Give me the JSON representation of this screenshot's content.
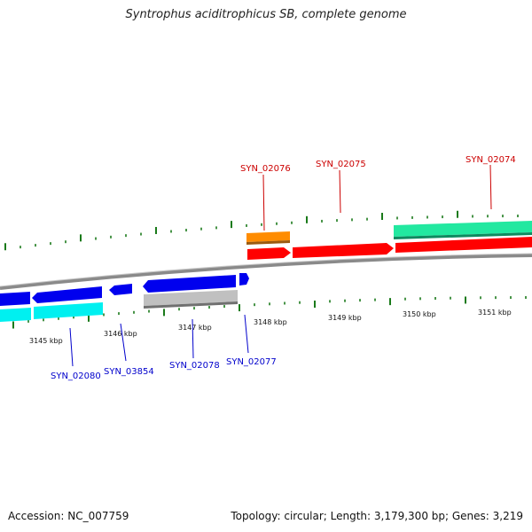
{
  "title": "Syntrophus aciditrophicus SB, complete genome",
  "footer": {
    "accession": "Accession: NC_007759",
    "summary": "Topology: circular; Length: 3,179,300 bp; Genes: 3,219"
  },
  "colors": {
    "backbone": "#8a8a8a",
    "forward_label": "#cc0000",
    "reverse_label": "#0000cc",
    "tick_green": "#1a7a1a"
  },
  "kbp_labels": [
    {
      "label": "3145 kbp",
      "kbp": 3145
    },
    {
      "label": "3146 kbp",
      "kbp": 3146
    },
    {
      "label": "3147 kbp",
      "kbp": 3147
    },
    {
      "label": "3148 kbp",
      "kbp": 3148
    },
    {
      "label": "3149 kbp",
      "kbp": 3149
    },
    {
      "label": "3150 kbp",
      "kbp": 3150
    },
    {
      "label": "3151 kbp",
      "kbp": 3151
    }
  ],
  "gene_labels": [
    {
      "label": "SYN_02076",
      "strand": "forward"
    },
    {
      "label": "SYN_02075",
      "strand": "forward"
    },
    {
      "label": "SYN_02074",
      "strand": "forward"
    },
    {
      "label": "SYN_02080",
      "strand": "reverse"
    },
    {
      "label": "SYN_03854",
      "strand": "reverse"
    },
    {
      "label": "SYN_02078",
      "strand": "reverse"
    },
    {
      "label": "SYN_02077",
      "strand": "reverse"
    }
  ]
}
